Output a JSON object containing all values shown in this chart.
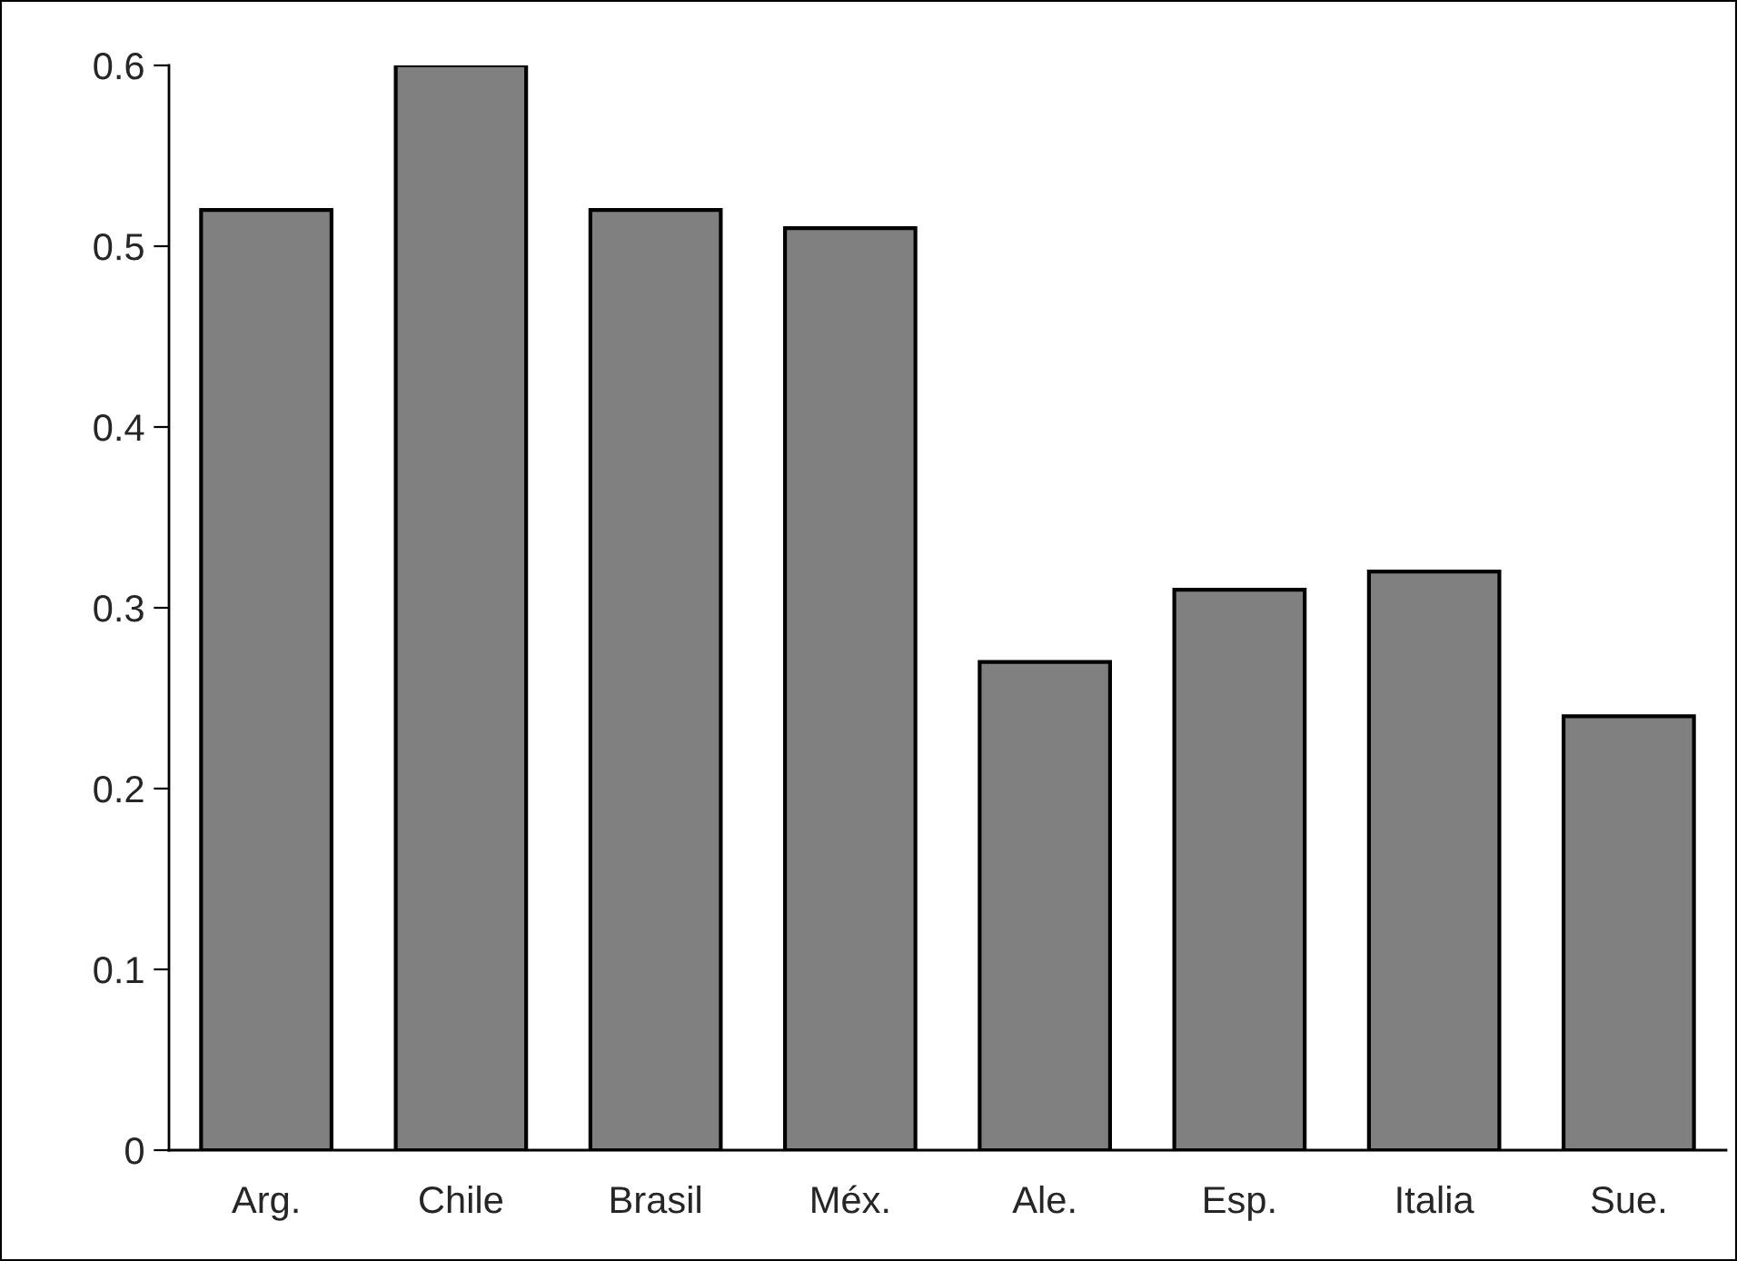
{
  "chart_data": {
    "type": "bar",
    "categories": [
      "Arg.",
      "Chile",
      "Brasil",
      "Méx.",
      "Ale.",
      "Esp.",
      "Italia",
      "Sue."
    ],
    "values": [
      0.52,
      0.6,
      0.52,
      0.51,
      0.27,
      0.31,
      0.32,
      0.24
    ],
    "color": "#808080",
    "ylim": [
      0,
      0.6
    ],
    "yticks": [
      {
        "value": 0,
        "label": "0"
      },
      0.1,
      0.2,
      0.3,
      0.4,
      0.5,
      0.6
    ],
    "grid": false
  }
}
